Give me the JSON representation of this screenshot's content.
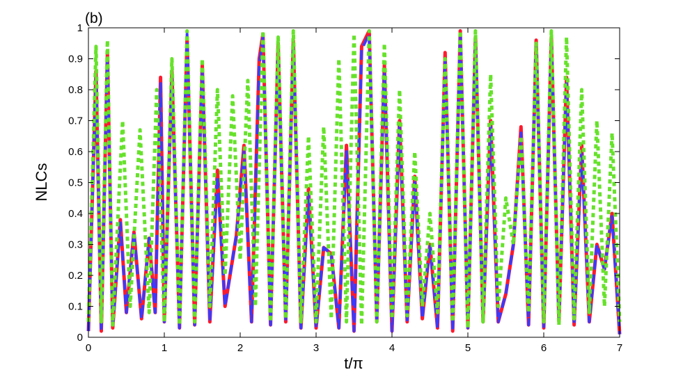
{
  "chart_data": {
    "type": "line",
    "panel_label": "(b)",
    "title": "",
    "xlabel": "t/π",
    "ylabel": "NLCs",
    "xlim": [
      0,
      7
    ],
    "ylim": [
      0,
      1
    ],
    "xticks": [
      "0",
      "1",
      "2",
      "3",
      "4",
      "5",
      "6",
      "7"
    ],
    "yticks": [
      "0",
      "0.1",
      "0.2",
      "0.3",
      "0.4",
      "0.5",
      "0.6",
      "0.7",
      "0.8",
      "0.9",
      "1"
    ],
    "grid": false,
    "legend": "none",
    "series": [
      {
        "color": "#ff1a2e",
        "line_style": "solid",
        "x": [
          0,
          0.1,
          0.17,
          0.25,
          0.32,
          0.42,
          0.5,
          0.6,
          0.7,
          0.8,
          0.88,
          0.95,
          1.0,
          1.1,
          1.2,
          1.3,
          1.4,
          1.5,
          1.6,
          1.7,
          1.8,
          1.95,
          2.05,
          2.15,
          2.25,
          2.3,
          2.4,
          2.5,
          2.6,
          2.7,
          2.8,
          2.9,
          3.0,
          3.1,
          3.2,
          3.3,
          3.4,
          3.5,
          3.6,
          3.7,
          3.8,
          3.9,
          4.0,
          4.1,
          4.2,
          4.3,
          4.4,
          4.5,
          4.6,
          4.7,
          4.8,
          4.9,
          5.0,
          5.1,
          5.2,
          5.3,
          5.4,
          5.5,
          5.6,
          5.7,
          5.8,
          5.9,
          6.0,
          6.1,
          6.2,
          6.3,
          6.4,
          6.5,
          6.6,
          6.7,
          6.8,
          6.9,
          7.0
        ],
        "y": [
          0.02,
          0.86,
          0.02,
          0.92,
          0.03,
          0.38,
          0.08,
          0.34,
          0.06,
          0.32,
          0.08,
          0.84,
          0.05,
          0.86,
          0.03,
          0.97,
          0.04,
          0.88,
          0.05,
          0.54,
          0.1,
          0.33,
          0.62,
          0.05,
          0.9,
          0.98,
          0.04,
          0.95,
          0.05,
          0.96,
          0.03,
          0.48,
          0.03,
          0.29,
          0.27,
          0.03,
          0.62,
          0.02,
          0.94,
          0.99,
          0.05,
          0.88,
          0.02,
          0.7,
          0.05,
          0.52,
          0.06,
          0.3,
          0.03,
          0.92,
          0.02,
          0.99,
          0.03,
          0.97,
          0.05,
          0.7,
          0.05,
          0.14,
          0.3,
          0.68,
          0.04,
          0.96,
          0.03,
          0.97,
          0.05,
          0.84,
          0.04,
          0.62,
          0.05,
          0.3,
          0.22,
          0.4,
          0.01
        ]
      },
      {
        "color": "#3a3aff",
        "line_style": "dash",
        "x": [
          0,
          0.1,
          0.17,
          0.25,
          0.32,
          0.42,
          0.5,
          0.6,
          0.7,
          0.8,
          0.88,
          0.95,
          1.0,
          1.1,
          1.2,
          1.3,
          1.4,
          1.5,
          1.6,
          1.7,
          1.8,
          1.95,
          2.05,
          2.15,
          2.25,
          2.3,
          2.4,
          2.5,
          2.6,
          2.7,
          2.8,
          2.9,
          3.0,
          3.1,
          3.2,
          3.3,
          3.4,
          3.5,
          3.6,
          3.7,
          3.8,
          3.9,
          4.0,
          4.1,
          4.2,
          4.3,
          4.4,
          4.5,
          4.6,
          4.7,
          4.8,
          4.9,
          5.0,
          5.1,
          5.2,
          5.3,
          5.4,
          5.5,
          5.6,
          5.7,
          5.8,
          5.9,
          6.0,
          6.1,
          6.2,
          6.3,
          6.4,
          6.5,
          6.6,
          6.7,
          6.8,
          6.9,
          7.0
        ],
        "y": [
          0.02,
          0.84,
          0.02,
          0.9,
          0.03,
          0.37,
          0.08,
          0.34,
          0.06,
          0.32,
          0.08,
          0.82,
          0.05,
          0.84,
          0.03,
          0.98,
          0.04,
          0.86,
          0.05,
          0.52,
          0.1,
          0.33,
          0.6,
          0.05,
          0.88,
          0.97,
          0.04,
          0.93,
          0.05,
          0.95,
          0.03,
          0.46,
          0.03,
          0.29,
          0.27,
          0.03,
          0.6,
          0.02,
          0.93,
          0.98,
          0.05,
          0.86,
          0.02,
          0.68,
          0.05,
          0.5,
          0.06,
          0.3,
          0.03,
          0.9,
          0.02,
          0.98,
          0.03,
          0.96,
          0.05,
          0.68,
          0.05,
          0.14,
          0.3,
          0.66,
          0.04,
          0.95,
          0.03,
          0.96,
          0.05,
          0.82,
          0.04,
          0.6,
          0.05,
          0.3,
          0.22,
          0.39,
          0.01
        ]
      },
      {
        "color": "#66e22a",
        "line_style": "dot",
        "x": [
          0,
          0.1,
          0.17,
          0.25,
          0.32,
          0.45,
          0.55,
          0.68,
          0.8,
          0.9,
          1.0,
          1.1,
          1.2,
          1.3,
          1.4,
          1.5,
          1.6,
          1.7,
          1.8,
          1.9,
          2.0,
          2.1,
          2.2,
          2.3,
          2.4,
          2.5,
          2.6,
          2.7,
          2.8,
          2.9,
          3.0,
          3.1,
          3.2,
          3.3,
          3.4,
          3.5,
          3.6,
          3.7,
          3.8,
          3.9,
          4.0,
          4.1,
          4.2,
          4.3,
          4.4,
          4.5,
          4.6,
          4.7,
          4.8,
          4.9,
          5.0,
          5.1,
          5.2,
          5.3,
          5.4,
          5.5,
          5.6,
          5.7,
          5.8,
          5.9,
          6.0,
          6.1,
          6.2,
          6.3,
          6.4,
          6.5,
          6.6,
          6.7,
          6.8,
          6.9,
          7.0
        ],
        "y": [
          0.05,
          0.94,
          0.05,
          0.96,
          0.04,
          0.7,
          0.1,
          0.67,
          0.08,
          0.8,
          0.05,
          0.9,
          0.04,
          0.99,
          0.05,
          0.9,
          0.1,
          0.8,
          0.2,
          0.78,
          0.25,
          0.83,
          0.1,
          0.99,
          0.05,
          0.97,
          0.06,
          0.99,
          0.05,
          0.65,
          0.05,
          0.68,
          0.06,
          0.9,
          0.05,
          0.98,
          0.04,
          0.99,
          0.05,
          0.95,
          0.06,
          0.8,
          0.07,
          0.6,
          0.1,
          0.4,
          0.08,
          0.9,
          0.05,
          0.99,
          0.03,
          0.99,
          0.05,
          0.85,
          0.1,
          0.45,
          0.3,
          0.65,
          0.08,
          0.95,
          0.05,
          0.99,
          0.04,
          0.97,
          0.06,
          0.8,
          0.08,
          0.7,
          0.1,
          0.66,
          0.05
        ]
      }
    ]
  }
}
